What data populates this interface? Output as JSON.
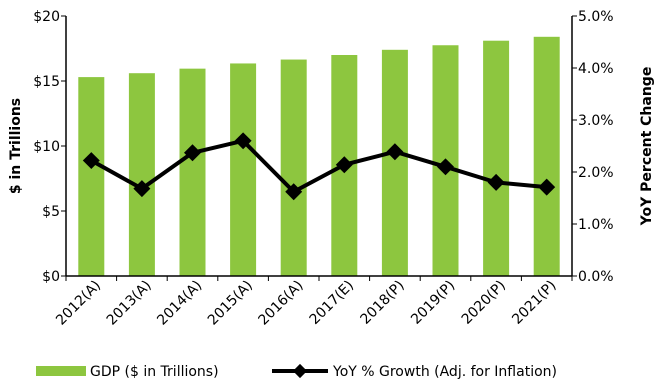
{
  "chart_data": {
    "type": "bar+line",
    "categories": [
      "2012(A)",
      "2013(A)",
      "2014(A)",
      "2015(A)",
      "2016(A)",
      "2017(E)",
      "2018(P)",
      "2019(P)",
      "2020(P)",
      "2021(P)"
    ],
    "series": [
      {
        "name": "GDP ($ in Trillions)",
        "type": "bar",
        "axis": "left",
        "color": "#8dc63f",
        "values": [
          15.3,
          15.6,
          15.95,
          16.35,
          16.65,
          17.0,
          17.4,
          17.75,
          18.1,
          18.4
        ]
      },
      {
        "name": "YoY % Growth (Adj. for Inflation)",
        "type": "line",
        "axis": "right",
        "color": "#000000",
        "values": [
          2.22,
          1.68,
          2.37,
          2.6,
          1.62,
          2.14,
          2.39,
          2.1,
          1.8,
          1.71
        ]
      }
    ],
    "ylabel": "$ in Trillions",
    "y2label": "YoY Percent Change",
    "ylim": [
      0,
      20
    ],
    "y2lim": [
      0,
      5
    ],
    "yticks": [
      "$0",
      "$5",
      "$10",
      "$15",
      "$20"
    ],
    "y2ticks": [
      "0.0%",
      "1.0%",
      "2.0%",
      "3.0%",
      "4.0%",
      "5.0%"
    ],
    "grid": false,
    "legend_position": "bottom"
  }
}
